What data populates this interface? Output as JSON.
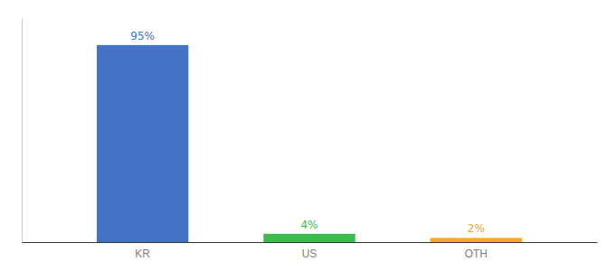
{
  "chart_data": {
    "type": "bar",
    "categories": [
      "KR",
      "US",
      "OTH"
    ],
    "values": [
      95,
      4,
      2
    ],
    "value_labels": [
      "95%",
      "4%",
      "2%"
    ],
    "colors": [
      "#4472c4",
      "#3dba4e",
      "#f5a623"
    ],
    "ylim": [
      0,
      108
    ],
    "grid": false,
    "data_labels": true,
    "tick_labels": "x"
  }
}
